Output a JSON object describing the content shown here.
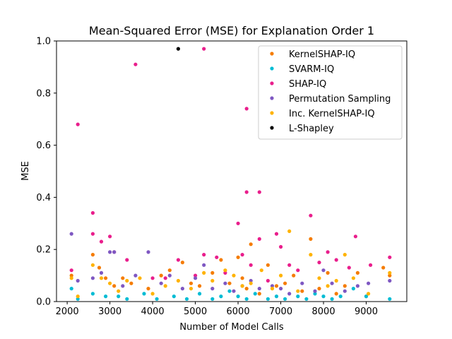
{
  "chart_data": {
    "type": "scatter",
    "title": "Mean-Squared Error (MSE) for Explanation Order 1",
    "xlabel": "Number of Model Calls",
    "ylabel": "MSE",
    "xlim": [
      1750,
      9950
    ],
    "ylim": [
      0,
      1.0
    ],
    "xticks": [
      2000,
      3000,
      4000,
      5000,
      6000,
      7000,
      8000,
      9000
    ],
    "yticks": [
      0.0,
      0.2,
      0.4,
      0.6,
      0.8,
      1.0
    ],
    "xtick_labels": [
      "2000",
      "3000",
      "4000",
      "5000",
      "6000",
      "7000",
      "8000",
      "9000"
    ],
    "ytick_labels": [
      "0.0",
      "0.2",
      "0.4",
      "0.6",
      "0.8",
      "1.0"
    ],
    "grid": false,
    "legend_position": "top-right",
    "series": [
      {
        "name": "KernelSHAP-IQ",
        "color": "#f57c00",
        "points": [
          [
            2100,
            0.1
          ],
          [
            2600,
            0.18
          ],
          [
            2750,
            0.13
          ],
          [
            2900,
            0.09
          ],
          [
            3100,
            0.06
          ],
          [
            3300,
            0.09
          ],
          [
            3500,
            0.07
          ],
          [
            3900,
            0.05
          ],
          [
            4200,
            0.1
          ],
          [
            4400,
            0.12
          ],
          [
            4700,
            0.15
          ],
          [
            4900,
            0.07
          ],
          [
            5100,
            0.06
          ],
          [
            5400,
            0.11
          ],
          [
            5600,
            0.16
          ],
          [
            5800,
            0.07
          ],
          [
            6000,
            0.17
          ],
          [
            6100,
            0.09
          ],
          [
            6200,
            0.05
          ],
          [
            6300,
            0.22
          ],
          [
            6500,
            0.03
          ],
          [
            6700,
            0.14
          ],
          [
            6900,
            0.06
          ],
          [
            7100,
            0.07
          ],
          [
            7300,
            0.1
          ],
          [
            7500,
            0.04
          ],
          [
            7700,
            0.24
          ],
          [
            7900,
            0.05
          ],
          [
            8100,
            0.11
          ],
          [
            8300,
            0.03
          ],
          [
            8500,
            0.06
          ],
          [
            8800,
            0.11
          ],
          [
            9000,
            0.02
          ],
          [
            9400,
            0.13
          ],
          [
            9550,
            0.1
          ]
        ]
      },
      {
        "name": "SVARM-IQ",
        "color": "#00bcd4",
        "points": [
          [
            2100,
            0.05
          ],
          [
            2250,
            0.01
          ],
          [
            2600,
            0.03
          ],
          [
            2900,
            0.02
          ],
          [
            3200,
            0.02
          ],
          [
            3400,
            0.01
          ],
          [
            3800,
            0.03
          ],
          [
            4100,
            0.01
          ],
          [
            4500,
            0.02
          ],
          [
            4800,
            0.01
          ],
          [
            5100,
            0.03
          ],
          [
            5400,
            0.01
          ],
          [
            5600,
            0.02
          ],
          [
            5800,
            0.04
          ],
          [
            6000,
            0.02
          ],
          [
            6200,
            0.01
          ],
          [
            6400,
            0.03
          ],
          [
            6700,
            0.01
          ],
          [
            6900,
            0.02
          ],
          [
            7100,
            0.01
          ],
          [
            7400,
            0.02
          ],
          [
            7600,
            0.01
          ],
          [
            7800,
            0.03
          ],
          [
            8000,
            0.02
          ],
          [
            8200,
            0.01
          ],
          [
            8400,
            0.02
          ],
          [
            8700,
            0.05
          ],
          [
            9000,
            0.02
          ],
          [
            9550,
            0.01
          ]
        ]
      },
      {
        "name": "SHAP-IQ",
        "color": "#e91e8c",
        "points": [
          [
            2100,
            0.12
          ],
          [
            2250,
            0.68
          ],
          [
            2600,
            0.34
          ],
          [
            2600,
            0.26
          ],
          [
            2800,
            0.23
          ],
          [
            3000,
            0.25
          ],
          [
            3100,
            0.19
          ],
          [
            3400,
            0.16
          ],
          [
            3600,
            0.91
          ],
          [
            4000,
            0.09
          ],
          [
            4300,
            0.09
          ],
          [
            4600,
            0.16
          ],
          [
            5000,
            0.1
          ],
          [
            5200,
            0.97
          ],
          [
            5200,
            0.18
          ],
          [
            5500,
            0.17
          ],
          [
            5700,
            0.11
          ],
          [
            6000,
            0.3
          ],
          [
            6100,
            0.18
          ],
          [
            6200,
            0.74
          ],
          [
            6200,
            0.42
          ],
          [
            6300,
            0.14
          ],
          [
            6500,
            0.42
          ],
          [
            6500,
            0.24
          ],
          [
            6700,
            0.08
          ],
          [
            6900,
            0.26
          ],
          [
            7000,
            0.21
          ],
          [
            7200,
            0.14
          ],
          [
            7400,
            0.12
          ],
          [
            7700,
            0.33
          ],
          [
            7900,
            0.15
          ],
          [
            8100,
            0.19
          ],
          [
            8300,
            0.16
          ],
          [
            8600,
            0.13
          ],
          [
            8750,
            0.25
          ],
          [
            9100,
            0.14
          ],
          [
            9550,
            0.17
          ]
        ]
      },
      {
        "name": "Permutation Sampling",
        "color": "#7e57c2",
        "points": [
          [
            2100,
            0.26
          ],
          [
            2250,
            0.08
          ],
          [
            2600,
            0.09
          ],
          [
            2800,
            0.11
          ],
          [
            3000,
            0.19
          ],
          [
            3100,
            0.19
          ],
          [
            3300,
            0.06
          ],
          [
            3600,
            0.1
          ],
          [
            3900,
            0.19
          ],
          [
            4200,
            0.07
          ],
          [
            4400,
            0.1
          ],
          [
            4700,
            0.05
          ],
          [
            5000,
            0.09
          ],
          [
            5200,
            0.14
          ],
          [
            5400,
            0.05
          ],
          [
            5700,
            0.07
          ],
          [
            5900,
            0.04
          ],
          [
            6100,
            0.06
          ],
          [
            6300,
            0.08
          ],
          [
            6500,
            0.05
          ],
          [
            6800,
            0.06
          ],
          [
            7000,
            0.05
          ],
          [
            7200,
            0.03
          ],
          [
            7500,
            0.07
          ],
          [
            7800,
            0.04
          ],
          [
            8000,
            0.12
          ],
          [
            8200,
            0.07
          ],
          [
            8500,
            0.04
          ],
          [
            8800,
            0.06
          ],
          [
            9050,
            0.07
          ],
          [
            9550,
            0.08
          ]
        ]
      },
      {
        "name": "Inc. KernelSHAP-IQ",
        "color": "#ffb300",
        "points": [
          [
            2100,
            0.09
          ],
          [
            2250,
            0.02
          ],
          [
            2600,
            0.14
          ],
          [
            2800,
            0.09
          ],
          [
            3000,
            0.07
          ],
          [
            3200,
            0.04
          ],
          [
            3400,
            0.08
          ],
          [
            3700,
            0.09
          ],
          [
            4000,
            0.03
          ],
          [
            4300,
            0.06
          ],
          [
            4600,
            0.08
          ],
          [
            4900,
            0.05
          ],
          [
            5200,
            0.11
          ],
          [
            5400,
            0.08
          ],
          [
            5700,
            0.12
          ],
          [
            5900,
            0.1
          ],
          [
            6100,
            0.06
          ],
          [
            6300,
            0.07
          ],
          [
            6550,
            0.12
          ],
          [
            6800,
            0.05
          ],
          [
            7000,
            0.1
          ],
          [
            7200,
            0.27
          ],
          [
            7400,
            0.04
          ],
          [
            7700,
            0.18
          ],
          [
            7900,
            0.09
          ],
          [
            8100,
            0.06
          ],
          [
            8300,
            0.08
          ],
          [
            8500,
            0.18
          ],
          [
            8700,
            0.09
          ],
          [
            9050,
            0.03
          ],
          [
            9550,
            0.11
          ]
        ]
      },
      {
        "name": "L-Shapley",
        "color": "#000000",
        "points": [
          [
            4600,
            0.97
          ]
        ]
      }
    ]
  }
}
